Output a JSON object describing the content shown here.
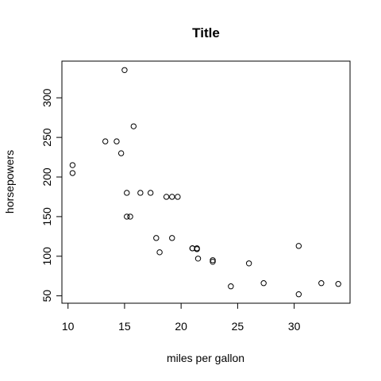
{
  "chart_data": {
    "type": "scatter",
    "title": "Title",
    "xlabel": "miles per gallon",
    "ylabel": "horsepowers",
    "x_ticks": [
      10,
      15,
      20,
      25,
      30
    ],
    "y_ticks": [
      50,
      100,
      150,
      200,
      250,
      300
    ],
    "xlim": [
      9.46,
      34.94
    ],
    "ylim": [
      40.68,
      346.32
    ],
    "grid": false,
    "legend": "none",
    "marker_color": "#000000",
    "x": [
      21.0,
      21.0,
      22.8,
      21.4,
      18.7,
      18.1,
      14.3,
      24.4,
      22.8,
      19.2,
      17.8,
      16.4,
      17.3,
      15.2,
      10.4,
      10.4,
      14.7,
      32.4,
      30.4,
      33.9,
      21.5,
      15.5,
      15.2,
      13.3,
      19.2,
      27.3,
      26.0,
      30.4,
      15.8,
      19.7,
      15.0,
      21.4
    ],
    "y": [
      110,
      110,
      93,
      110,
      175,
      105,
      245,
      62,
      95,
      123,
      123,
      180,
      180,
      180,
      205,
      215,
      230,
      66,
      52,
      65,
      97,
      150,
      150,
      245,
      175,
      66,
      91,
      113,
      264,
      175,
      335,
      109
    ]
  }
}
